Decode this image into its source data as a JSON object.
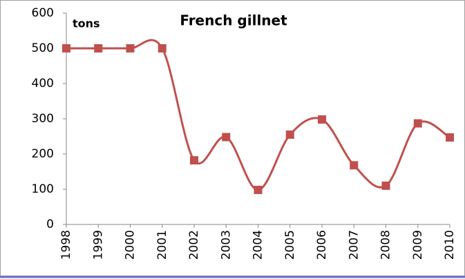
{
  "chart_data": {
    "type": "line",
    "title": "French gillnet",
    "ylabel": "tons",
    "categories": [
      "1998",
      "1999",
      "2000",
      "2001",
      "2002",
      "2003",
      "2004",
      "2005",
      "2006",
      "2007",
      "2008",
      "2009",
      "2010"
    ],
    "series": [
      {
        "name": "French gillnet",
        "color": "#c0504d",
        "values": [
          500,
          500,
          500,
          500,
          182,
          248,
          98,
          255,
          298,
          168,
          110,
          287,
          247
        ]
      }
    ],
    "ylim": [
      0,
      600
    ],
    "yticks": [
      0,
      100,
      200,
      300,
      400,
      500,
      600
    ],
    "smooth": true,
    "marker": "square"
  }
}
